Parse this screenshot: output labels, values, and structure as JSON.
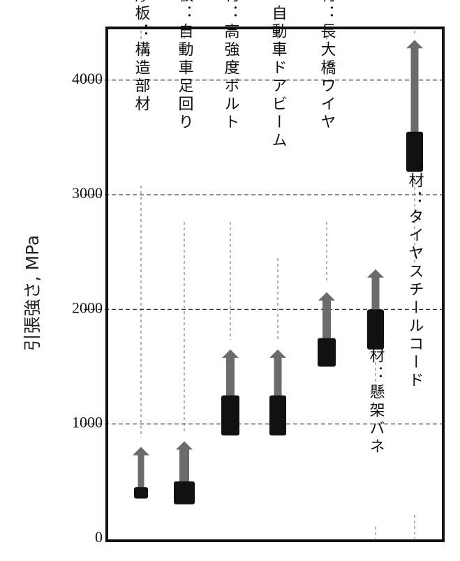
{
  "chart_data": {
    "type": "bar",
    "title": "",
    "xlabel": "",
    "ylabel": "引張強さ, MPa",
    "ylim": [
      0,
      4000
    ],
    "yticks": [
      0,
      1000,
      2000,
      3000,
      4000
    ],
    "ytick_labels": [
      "0",
      "1000",
      "2000",
      "3000",
      "4000"
    ],
    "grid": "dashed horizontal at 1000, 2000, 3000, 4000",
    "categories": [
      "厚板：構造部材",
      "薄板：自動車足回り",
      "線材：高強度ボルト",
      "薄板：自動車ドアビーム",
      "線材：長大橋ワイヤ",
      "線材：懸架バネ",
      "線材：タイヤスチールコード"
    ],
    "ranges": [
      {
        "low": 350,
        "high": 450,
        "arrow_to": 800
      },
      {
        "low": 300,
        "high": 500,
        "arrow_to": 850
      },
      {
        "low": 900,
        "high": 1250,
        "arrow_to": 1650
      },
      {
        "low": 900,
        "high": 1250,
        "arrow_to": 1650
      },
      {
        "low": 1500,
        "high": 1750,
        "arrow_to": 2150
      },
      {
        "low": 1650,
        "high": 2000,
        "arrow_to": 2350
      },
      {
        "low": 3200,
        "high": 3550,
        "arrow_to": 4350
      }
    ],
    "colors": {
      "bar": "#111111",
      "arrow": "#6b6b6b",
      "grid": "#333333"
    }
  }
}
